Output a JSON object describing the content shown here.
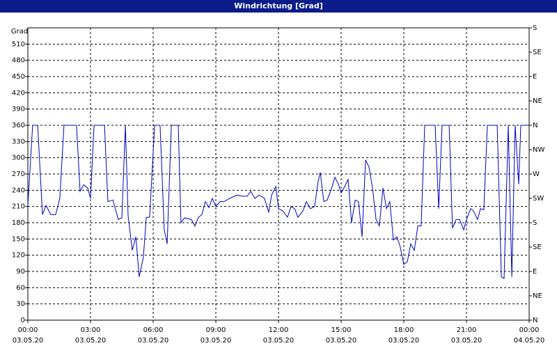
{
  "chart_data": {
    "type": "line",
    "title": "Windrichtung [Grad]",
    "ylabel": "Grad",
    "color": "#0000c0",
    "grid": true,
    "xlim": [
      0,
      24
    ],
    "xticks": [
      {
        "value": 0,
        "label": "00:00"
      },
      {
        "value": 3,
        "label": "03:00"
      },
      {
        "value": 6,
        "label": "06:00"
      },
      {
        "value": 9,
        "label": "09:00"
      },
      {
        "value": 12,
        "label": "12:00"
      },
      {
        "value": 15,
        "label": "15:00"
      },
      {
        "value": 18,
        "label": "18:00"
      },
      {
        "value": 21,
        "label": "21:00"
      },
      {
        "value": 24,
        "label": "00:00"
      }
    ],
    "xtick_dates": [
      "03.05.20",
      "03.05.20",
      "03.05.20",
      "03.05.20",
      "03.05.20",
      "03.05.20",
      "03.05.20",
      "03.05.20",
      "04.05.20"
    ],
    "ylim": [
      0,
      540
    ],
    "yticks": [
      0,
      30,
      60,
      90,
      120,
      150,
      180,
      210,
      240,
      270,
      300,
      330,
      360,
      390,
      420,
      450,
      480,
      510
    ],
    "y2lim": [
      0,
      540
    ],
    "y2ticks": [
      {
        "value": 0,
        "label": "N"
      },
      {
        "value": 45,
        "label": "NE"
      },
      {
        "value": 90,
        "label": "E"
      },
      {
        "value": 135,
        "label": "SE"
      },
      {
        "value": 180,
        "label": "S"
      },
      {
        "value": 225,
        "label": "SW"
      },
      {
        "value": 270,
        "label": "W"
      },
      {
        "value": 315,
        "label": "NW"
      },
      {
        "value": 360,
        "label": "N"
      },
      {
        "value": 405,
        "label": "NE"
      },
      {
        "value": 450,
        "label": "E"
      },
      {
        "value": 495,
        "label": "SE"
      },
      {
        "value": 540,
        "label": "S"
      }
    ],
    "x": [
      0,
      0.23,
      0.47,
      0.7,
      0.87,
      1.1,
      1.33,
      1.53,
      1.73,
      2.33,
      2.5,
      2.67,
      2.87,
      3,
      3.17,
      3.67,
      3.83,
      4.07,
      4.33,
      4.5,
      4.67,
      4.8,
      5,
      5.17,
      5.33,
      5.53,
      5.67,
      5.83,
      6.07,
      6.33,
      6.53,
      6.67,
      6.87,
      7.2,
      7.33,
      7.5,
      7.83,
      8,
      8.17,
      8.33,
      8.5,
      8.67,
      8.83,
      9,
      9.2,
      9.4,
      9.67,
      10,
      10.27,
      10.5,
      10.67,
      10.87,
      11.07,
      11.33,
      11.53,
      11.67,
      11.87,
      12,
      12.2,
      12.43,
      12.6,
      12.77,
      12.93,
      13.17,
      13.33,
      13.53,
      13.73,
      13.9,
      14,
      14.17,
      14.33,
      14.53,
      14.7,
      14.87,
      15,
      15.17,
      15.33,
      15.5,
      15.67,
      15.83,
      16,
      16.17,
      16.33,
      16.5,
      16.67,
      16.83,
      17,
      17.17,
      17.33,
      17.5,
      17.67,
      17.83,
      18,
      18.17,
      18.33,
      18.5,
      18.67,
      18.83,
      19,
      19.5,
      19.67,
      19.83,
      20.17,
      20.33,
      20.5,
      20.67,
      20.87,
      21,
      21.2,
      21.33,
      21.53,
      21.67,
      21.83,
      22,
      22.47,
      22.67,
      22.8,
      23,
      23.17,
      23.33,
      23.5,
      23.6,
      24
    ],
    "values": [
      212,
      360,
      360,
      195,
      212,
      195,
      195,
      225,
      360,
      360,
      238,
      250,
      244,
      225,
      360,
      360,
      219,
      222,
      186,
      189,
      360,
      193,
      129,
      154,
      80,
      116,
      190,
      190,
      360,
      360,
      167,
      141,
      360,
      360,
      180,
      189,
      186,
      174,
      190,
      195,
      219,
      208,
      225,
      210,
      219,
      219,
      225,
      231,
      229,
      229,
      238,
      225,
      231,
      225,
      199,
      231,
      247,
      206,
      202,
      190,
      210,
      206,
      190,
      202,
      219,
      206,
      210,
      257,
      273,
      219,
      222,
      242,
      264,
      251,
      235,
      247,
      260,
      180,
      222,
      219,
      154,
      296,
      283,
      244,
      186,
      174,
      244,
      206,
      219,
      148,
      154,
      135,
      103,
      108,
      141,
      129,
      174,
      174,
      360,
      360,
      206,
      360,
      360,
      170,
      186,
      186,
      167,
      186,
      206,
      202,
      186,
      206,
      204,
      360,
      360,
      80,
      77,
      360,
      80,
      360,
      251,
      360,
      360
    ]
  }
}
